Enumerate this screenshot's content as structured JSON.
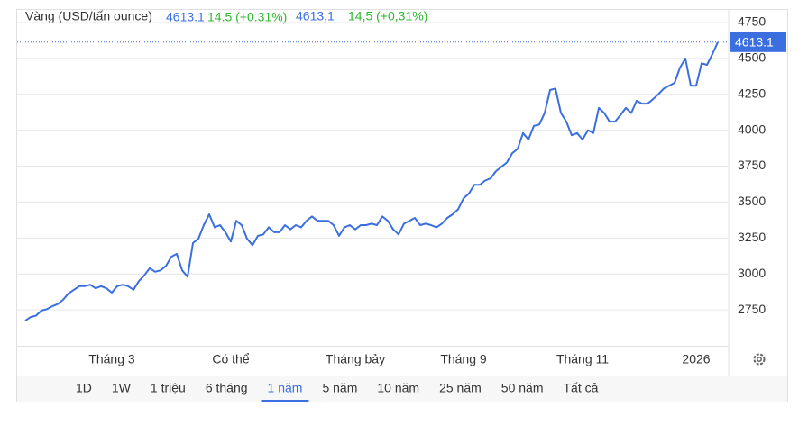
{
  "chart_data": {
    "type": "line",
    "title": "Vàng (USD/tấn ounce)",
    "header": {
      "price": "4613.1",
      "change": "14.5 (+0.31%)",
      "price_alt": "4613,1",
      "change_alt": "14,5 (+0,31%)"
    },
    "last_label": "4613.1",
    "categories": [
      null,
      null,
      null,
      null,
      null,
      null,
      null,
      null,
      null,
      null,
      null,
      null,
      null,
      null,
      null,
      null,
      "Tháng 3",
      null,
      null,
      null,
      null,
      null,
      null,
      null,
      null,
      null,
      null,
      null,
      null,
      null,
      null,
      null,
      null,
      null,
      null,
      null,
      null,
      null,
      "Có thể",
      null,
      null,
      null,
      null,
      null,
      null,
      null,
      null,
      null,
      null,
      null,
      null,
      null,
      null,
      null,
      null,
      null,
      null,
      null,
      null,
      null,
      null,
      "Tháng bảy",
      null,
      null,
      null,
      null,
      null,
      null,
      null,
      null,
      null,
      null,
      null,
      null,
      null,
      null,
      null,
      null,
      null,
      null,
      null,
      "Tháng 9",
      null,
      null,
      null,
      null,
      null,
      null,
      null,
      null,
      null,
      null,
      null,
      null,
      null,
      null,
      null,
      null,
      null,
      null,
      null,
      null,
      null,
      "Tháng 11",
      null,
      null,
      null,
      null,
      null,
      null,
      null,
      null,
      null,
      null,
      null,
      null,
      null,
      null,
      null,
      null,
      null,
      null,
      null,
      null,
      "2026",
      null,
      null,
      null,
      null
    ],
    "series": [
      {
        "name": "Vàng",
        "color": "#3b6fe0",
        "values": [
          2675,
          2700,
          2710,
          2745,
          2755,
          2775,
          2790,
          2820,
          2865,
          2890,
          2915,
          2915,
          2925,
          2900,
          2915,
          2900,
          2870,
          2915,
          2925,
          2915,
          2890,
          2950,
          2990,
          3040,
          3015,
          3025,
          3055,
          3120,
          3140,
          3025,
          2980,
          3215,
          3245,
          3340,
          3415,
          3325,
          3340,
          3290,
          3225,
          3370,
          3340,
          3245,
          3200,
          3265,
          3275,
          3325,
          3290,
          3290,
          3340,
          3310,
          3340,
          3325,
          3370,
          3400,
          3370,
          3370,
          3370,
          3340,
          3265,
          3325,
          3340,
          3310,
          3340,
          3340,
          3350,
          3340,
          3400,
          3370,
          3310,
          3275,
          3350,
          3370,
          3390,
          3340,
          3350,
          3340,
          3325,
          3350,
          3390,
          3415,
          3450,
          3525,
          3560,
          3620,
          3620,
          3650,
          3665,
          3715,
          3745,
          3775,
          3840,
          3870,
          3980,
          3935,
          4030,
          4040,
          4120,
          4280,
          4290,
          4120,
          4060,
          3965,
          3980,
          3935,
          4000,
          3980,
          4155,
          4120,
          4060,
          4060,
          4105,
          4155,
          4120,
          4205,
          4185,
          4185,
          4215,
          4250,
          4290,
          4310,
          4330,
          4435,
          4500,
          4310,
          4310,
          4465,
          4455,
          4530,
          4613.1
        ]
      }
    ],
    "ylim": [
      2500,
      4850
    ],
    "yticks": [
      2750,
      3000,
      3250,
      3500,
      3750,
      4000,
      4250,
      4500,
      4750
    ],
    "grid": true,
    "range_buttons": [
      "1D",
      "1W",
      "1 triệu",
      "6 tháng",
      "1 năm",
      "5 năm",
      "10 năm",
      "25 năm",
      "50 năm",
      "Tất cả"
    ],
    "selected_range": "1 năm"
  }
}
